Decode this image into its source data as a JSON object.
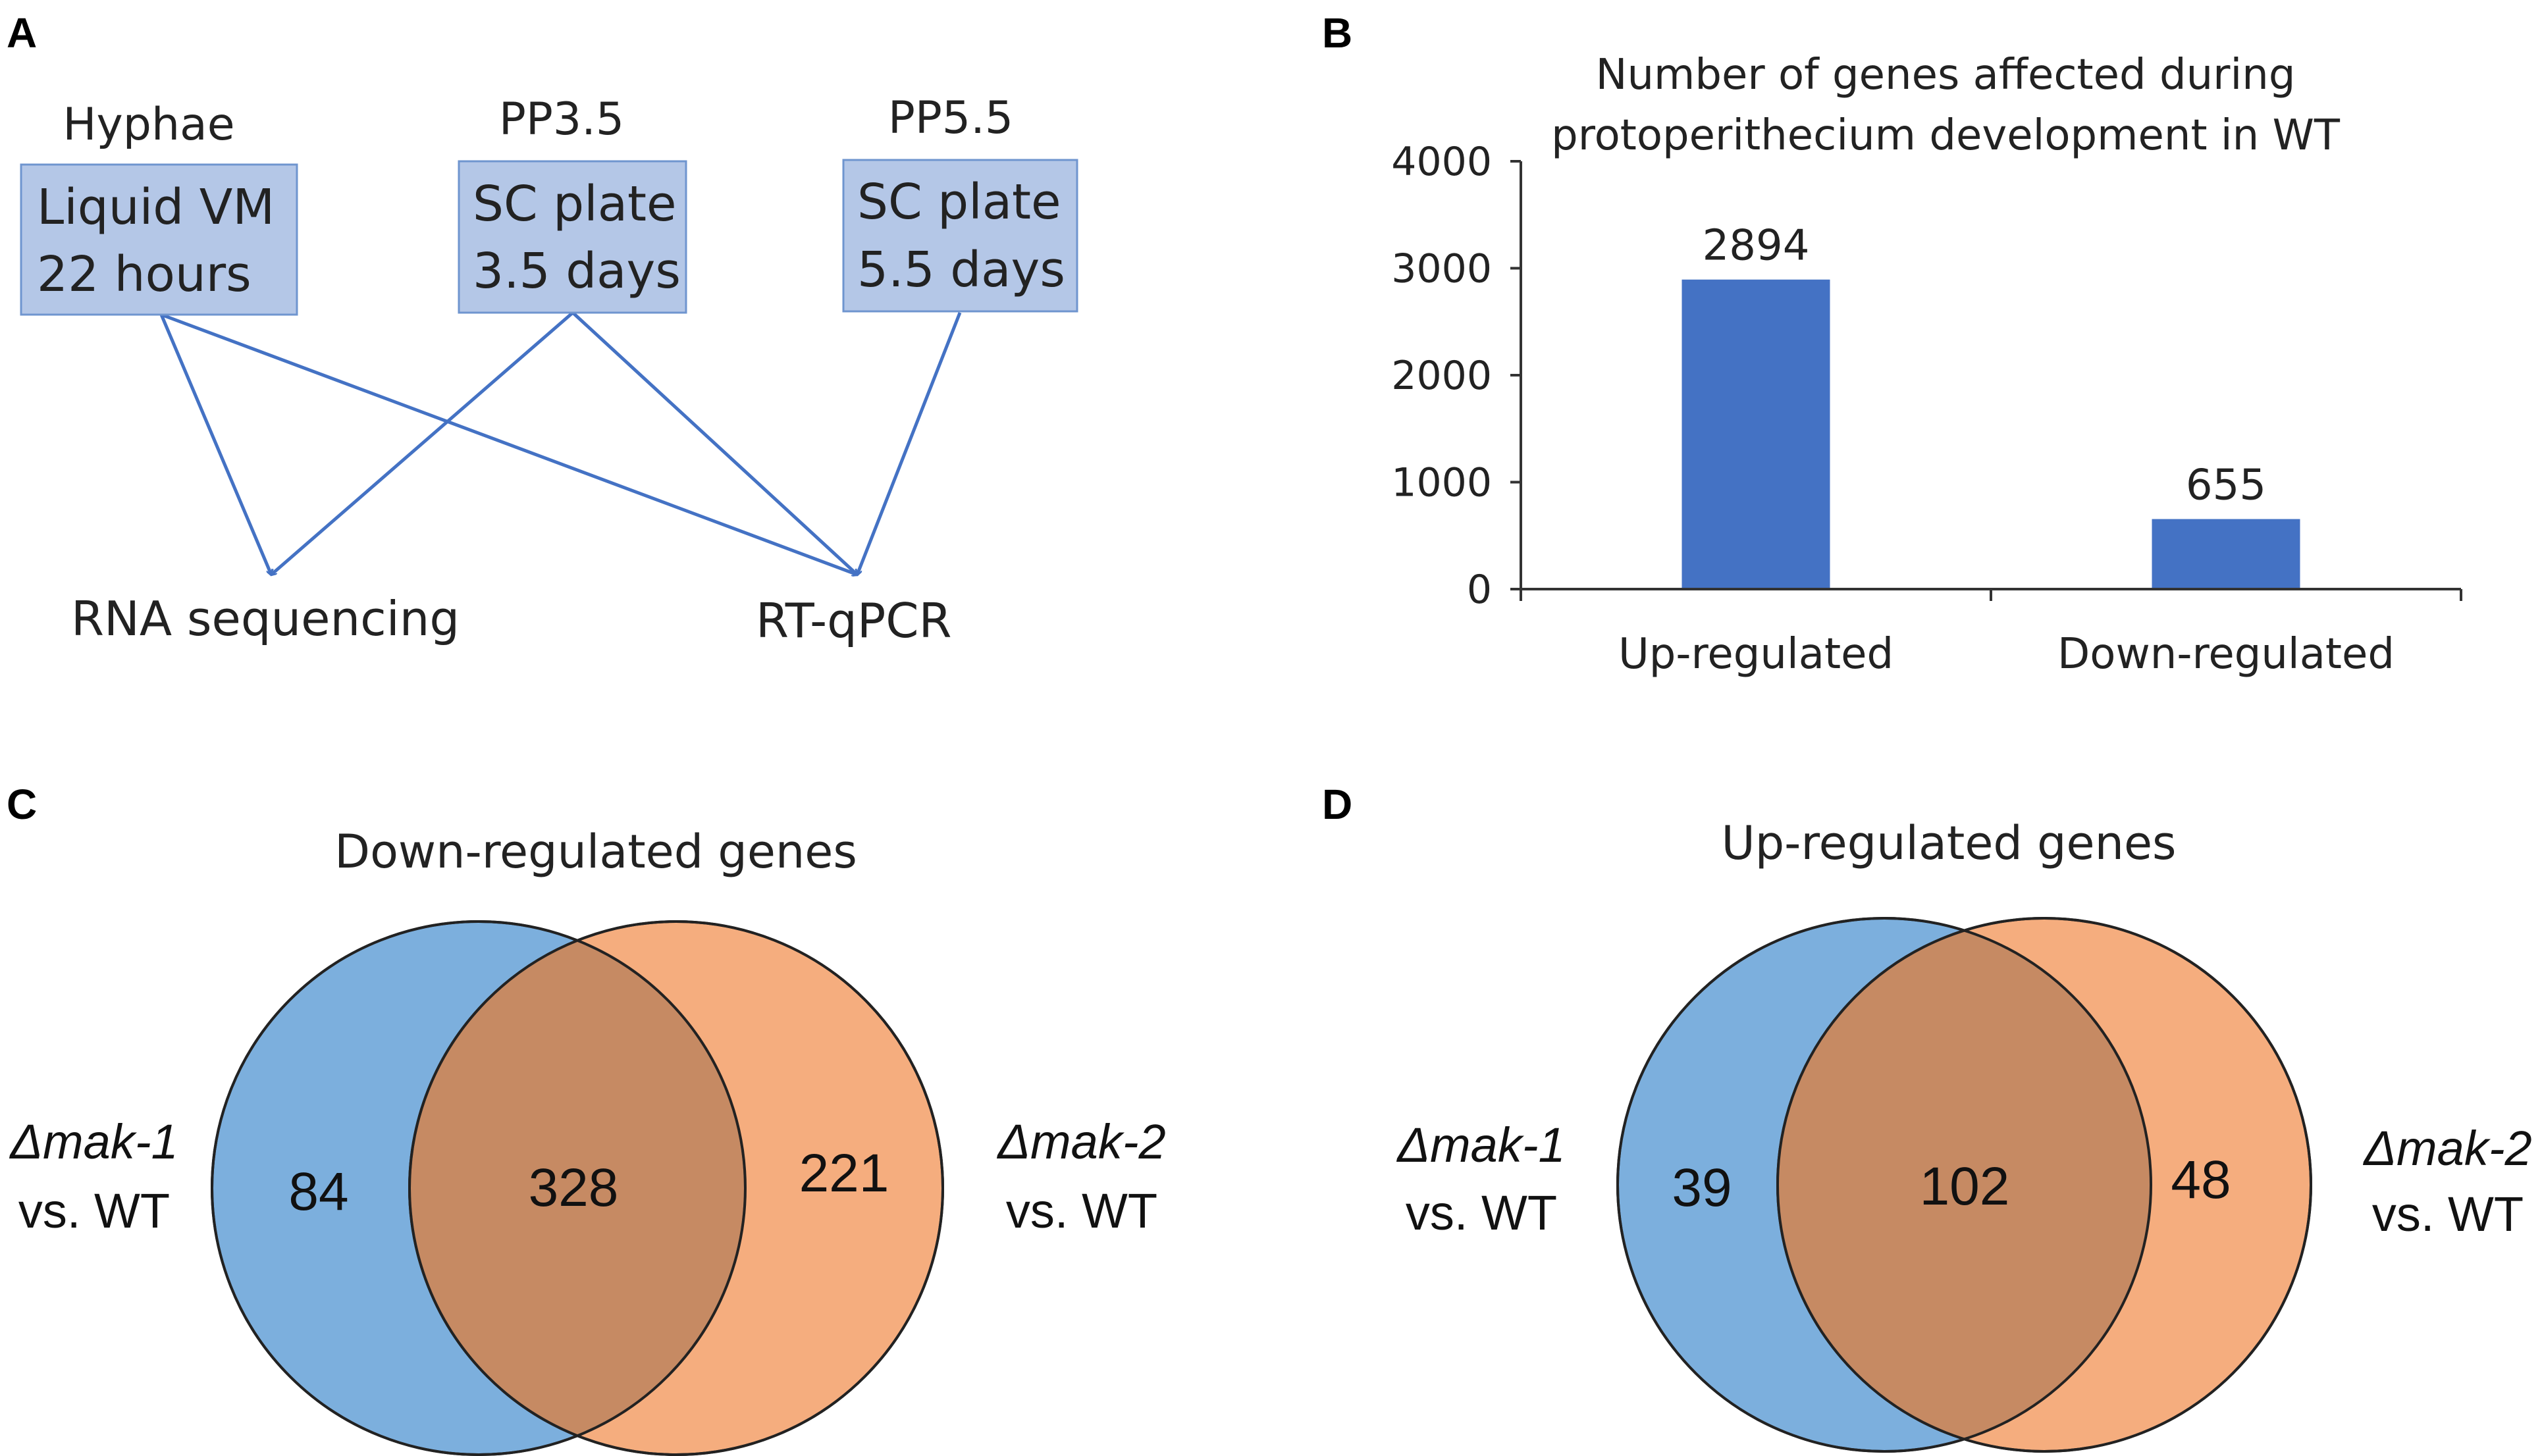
{
  "panels": {
    "a": "A",
    "b": "B",
    "c": "C",
    "d": "D"
  },
  "flow": {
    "stages": [
      {
        "head": "Hyphae",
        "line1": "Liquid VM",
        "line2": "22 hours"
      },
      {
        "head": "PP3.5",
        "line1": "SC plate",
        "line2": "3.5 days"
      },
      {
        "head": "PP5.5",
        "line1": "SC plate",
        "line2": "5.5 days"
      }
    ],
    "outputs": [
      "RNA sequencing",
      "RT-qPCR"
    ],
    "box_color": "#b4c7e7",
    "arrow_color": "#4472c4"
  },
  "chart_data": {
    "type": "bar",
    "title": "Number of genes affected during protoperithecium development in WT",
    "title_lines": [
      "Number of genes affected during",
      "protoperithecium  development  in WT"
    ],
    "categories": [
      "Up-regulated",
      "Down-regulated"
    ],
    "values": [
      2894,
      655
    ],
    "data_labels": [
      "2894",
      "655"
    ],
    "ylim": [
      0,
      4000
    ],
    "yticks": [
      0,
      1000,
      2000,
      3000,
      4000
    ],
    "ytick_labels": [
      "0",
      "1000",
      "2000",
      "3000",
      "4000"
    ],
    "xlabel": "",
    "ylabel": "",
    "bar_color": "#4472c4"
  },
  "venn": [
    {
      "title": "Down-regulated genes",
      "left_label": {
        "mutant": "Δmak-1",
        "suffix": "vs. WT"
      },
      "right_label": {
        "mutant": "Δmak-2",
        "suffix": "vs. WT"
      },
      "left_only": "84",
      "overlap": "328",
      "right_only": "221"
    },
    {
      "title": "Up-regulated genes",
      "left_label": {
        "mutant": "Δmak-1",
        "suffix": "vs. WT"
      },
      "right_label": {
        "mutant": "Δmak-2",
        "suffix": "vs. WT"
      },
      "left_only": "39",
      "overlap": "102",
      "right_only": "48"
    }
  ],
  "colors": {
    "venn_left": "#5b9bd5",
    "venn_right": "#f4a470",
    "venn_overlap": "#c68a63"
  }
}
